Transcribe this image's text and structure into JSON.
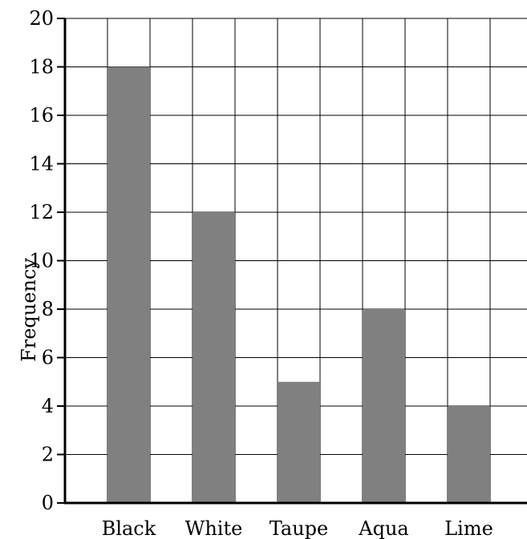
{
  "chart_data": {
    "type": "bar",
    "categories": [
      "Black",
      "White",
      "Taupe",
      "Aqua",
      "Lime"
    ],
    "values": [
      18,
      12,
      5,
      8,
      4
    ],
    "title": "",
    "xlabel": "",
    "ylabel": "Frequency",
    "ylim": [
      0,
      20
    ],
    "yticks": [
      0,
      2,
      4,
      6,
      8,
      10,
      12,
      14,
      16,
      18,
      20
    ],
    "grid": true,
    "bar_color": "#808080",
    "grid_color": "#000000"
  }
}
